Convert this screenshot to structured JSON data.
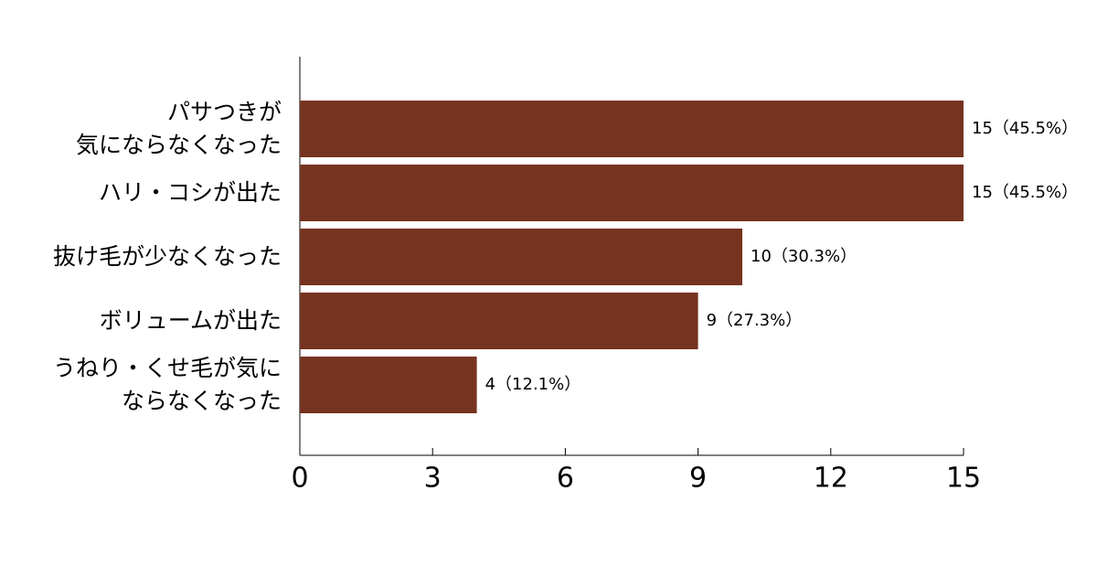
{
  "chart_data": {
    "type": "bar",
    "orientation": "horizontal",
    "categories": [
      "パサつきが\n気にならなくなった",
      "ハリ・コシが出た",
      "抜け毛が少なくなった",
      "ボリュームが出た",
      "うねり・くせ毛が気に\nならなくなった"
    ],
    "values": [
      15,
      15,
      10,
      9,
      4
    ],
    "value_labels": [
      "15（45.5%）",
      "15（45.5%）",
      "10（30.3%）",
      "9（27.3%）",
      "4（12.1%）"
    ],
    "color": "#763320",
    "xlim": [
      0,
      15
    ],
    "xticks": [
      0,
      3,
      6,
      9,
      12,
      15
    ]
  }
}
